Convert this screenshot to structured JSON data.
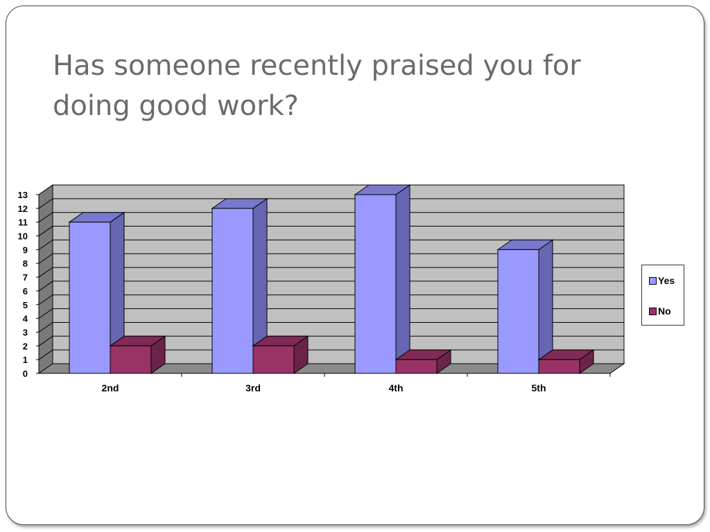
{
  "slide": {
    "title": "Has someone recently praised you for doing good work?"
  },
  "colors": {
    "yes_front": "#9999ff",
    "yes_side": "#6666b3",
    "yes_top": "#7878cc",
    "no_front": "#993366",
    "no_side": "#6b2447",
    "no_top": "#802a55",
    "wall": "#c0c0c0",
    "floor": "#8a8a8a"
  },
  "chart_data": {
    "type": "bar",
    "categories": [
      "2nd",
      "3rd",
      "4th",
      "5th"
    ],
    "series": [
      {
        "name": "Yes",
        "values": [
          11,
          12,
          13,
          9
        ]
      },
      {
        "name": "No",
        "values": [
          2,
          2,
          1,
          1
        ]
      }
    ],
    "ylim": [
      0,
      13
    ],
    "yticks": [
      "0",
      "1",
      "2",
      "3",
      "4",
      "5",
      "6",
      "7",
      "8",
      "9",
      "10",
      "11",
      "12",
      "13"
    ],
    "grid": true,
    "legend": "right",
    "title": "",
    "xlabel": "",
    "ylabel": ""
  }
}
